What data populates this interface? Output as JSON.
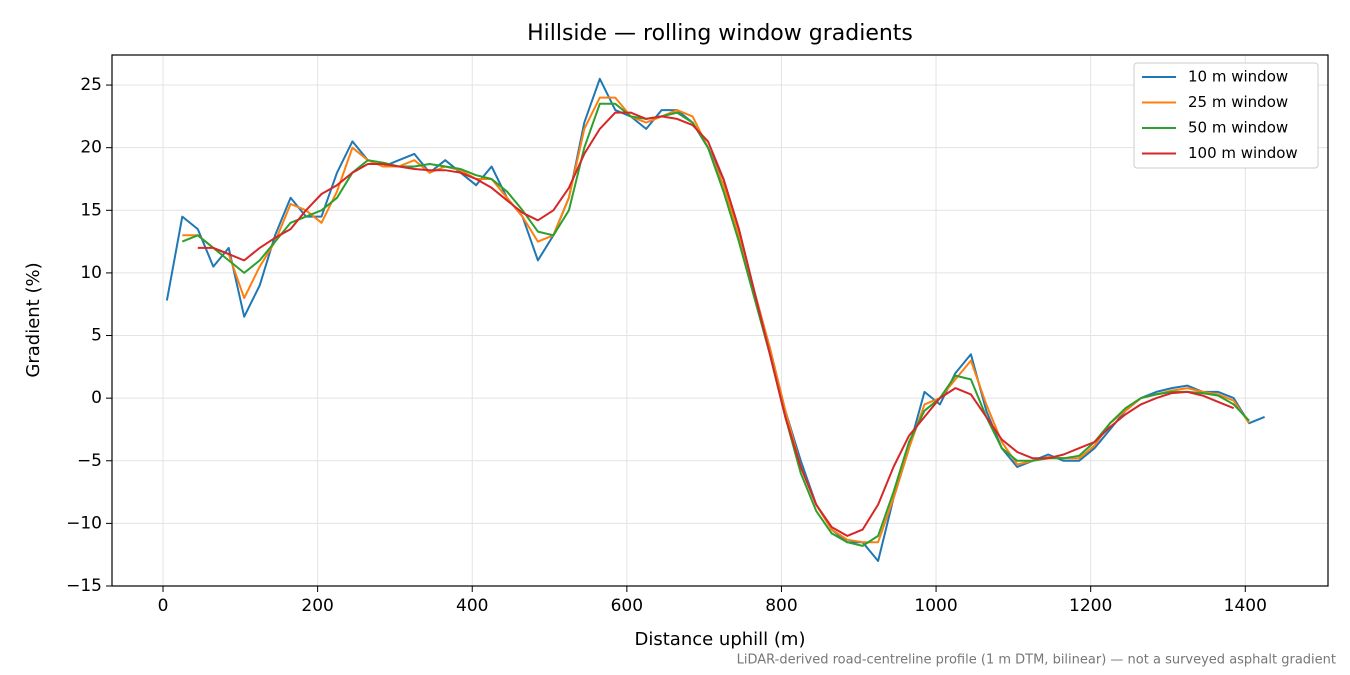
{
  "chart_data": {
    "type": "line",
    "title": "Hillside — rolling window gradients",
    "x_label": "Distance uphill (m)",
    "y_label": "Gradient (%)",
    "footnote": "LiDAR-derived road-centreline profile (1 m DTM, bilinear) — not a surveyed asphalt gradient",
    "x": [
      5,
      25,
      45,
      65,
      85,
      105,
      125,
      145,
      165,
      185,
      205,
      225,
      245,
      265,
      285,
      305,
      325,
      345,
      365,
      385,
      405,
      425,
      445,
      465,
      485,
      505,
      525,
      545,
      565,
      585,
      605,
      625,
      645,
      665,
      685,
      705,
      725,
      745,
      765,
      785,
      805,
      825,
      845,
      865,
      885,
      905,
      925,
      945,
      965,
      985,
      1005,
      1025,
      1045,
      1065,
      1085,
      1105,
      1125,
      1145,
      1165,
      1185,
      1205,
      1225,
      1245,
      1265,
      1285,
      1305,
      1325,
      1345,
      1365,
      1385,
      1405,
      1425
    ],
    "series": [
      {
        "name": "10 m window",
        "color": "#1f77b4",
        "values": [
          7.8,
          14.5,
          13.5,
          10.5,
          12,
          6.5,
          9,
          13,
          16,
          14.5,
          14.5,
          18,
          20.5,
          19,
          18.5,
          19,
          19.5,
          18,
          19,
          18,
          17,
          18.5,
          16,
          14.5,
          11,
          13,
          16,
          22,
          25.5,
          23,
          22.5,
          21.5,
          23,
          23,
          22,
          20,
          17.5,
          13.5,
          8.5,
          4,
          -1,
          -5,
          -8.5,
          -10.5,
          -11.5,
          -11.5,
          -13,
          -8,
          -4,
          0.5,
          -0.5,
          2,
          3.5,
          -1,
          -4,
          -5.5,
          -5,
          -4.5,
          -5,
          -5,
          -4,
          -2.5,
          -1,
          0,
          0.5,
          0.8,
          1,
          0.5,
          0.5,
          0,
          -2,
          -1.5
        ]
      },
      {
        "name": "25 m window",
        "color": "#ff7f0e",
        "values": [
          null,
          13,
          13,
          12,
          11.5,
          8,
          10.5,
          12.5,
          15.5,
          15,
          14,
          16.5,
          20,
          19,
          18.5,
          18.5,
          19,
          18,
          18.5,
          18.2,
          17.5,
          17.5,
          16,
          14.5,
          12.5,
          13,
          16,
          21.5,
          24,
          24,
          22.5,
          22,
          22.5,
          23,
          22.5,
          20,
          17,
          13,
          8.5,
          4,
          -1,
          -5.5,
          -8.5,
          -10.5,
          -11.3,
          -11.5,
          -11.5,
          -8,
          -4,
          -0.5,
          0,
          1.5,
          3,
          -0.5,
          -3.5,
          -5.3,
          -5,
          -4.7,
          -4.8,
          -4.8,
          -3.8,
          -2,
          -1,
          0,
          0.3,
          0.6,
          0.8,
          0.5,
          0.3,
          -0.2,
          -2,
          null
        ]
      },
      {
        "name": "50 m window",
        "color": "#2ca02c",
        "values": [
          null,
          12.5,
          13,
          12,
          11,
          10,
          11,
          12.5,
          14,
          14.5,
          15,
          16,
          18,
          19,
          18.8,
          18.5,
          18.5,
          18.7,
          18.5,
          18.3,
          17.8,
          17.5,
          16.5,
          15,
          13.3,
          13,
          15,
          20,
          23.5,
          23.5,
          22.5,
          22.3,
          22.5,
          22.8,
          22,
          20,
          16.5,
          12.5,
          8,
          3.5,
          -1.5,
          -6,
          -9,
          -10.8,
          -11.5,
          -11.8,
          -11,
          -7.5,
          -3.5,
          -1,
          0,
          1.8,
          1.5,
          -1.5,
          -4,
          -5,
          -5,
          -4.8,
          -4.8,
          -4.6,
          -3.5,
          -2,
          -0.8,
          0,
          0.3,
          0.5,
          0.5,
          0.4,
          0.2,
          -0.5,
          -1.8,
          null
        ]
      },
      {
        "name": "100 m window",
        "color": "#d62728",
        "values": [
          null,
          null,
          12,
          12,
          11.5,
          11,
          12,
          12.8,
          13.5,
          15,
          16.3,
          17,
          18,
          18.7,
          18.7,
          18.5,
          18.3,
          18.2,
          18.2,
          18,
          17.5,
          16.8,
          15.8,
          14.8,
          14.2,
          15,
          16.8,
          19.5,
          21.5,
          22.8,
          22.8,
          22.3,
          22.5,
          22.3,
          21.8,
          20.5,
          17.5,
          13.5,
          8.5,
          3.5,
          -1.5,
          -5.5,
          -8.5,
          -10.3,
          -11,
          -10.5,
          -8.5,
          -5.5,
          -3,
          -1.5,
          0,
          0.8,
          0.3,
          -1.5,
          -3.3,
          -4.3,
          -4.8,
          -4.8,
          -4.5,
          -4,
          -3.5,
          -2.3,
          -1.3,
          -0.5,
          0,
          0.4,
          0.5,
          0.2,
          -0.3,
          -0.8,
          null,
          null
        ]
      }
    ],
    "xlim": [
      -66,
      1507
    ],
    "ylim": [
      -15,
      27.4
    ],
    "xticks": [
      0,
      200,
      400,
      600,
      800,
      1000,
      1200,
      1400
    ],
    "yticks": [
      {
        "value": -15,
        "label": "−15"
      },
      {
        "value": -10,
        "label": "−10"
      },
      {
        "value": -5,
        "label": "−5"
      },
      0,
      5,
      10,
      15,
      20,
      25
    ],
    "grid": true,
    "legend": "upper right"
  }
}
